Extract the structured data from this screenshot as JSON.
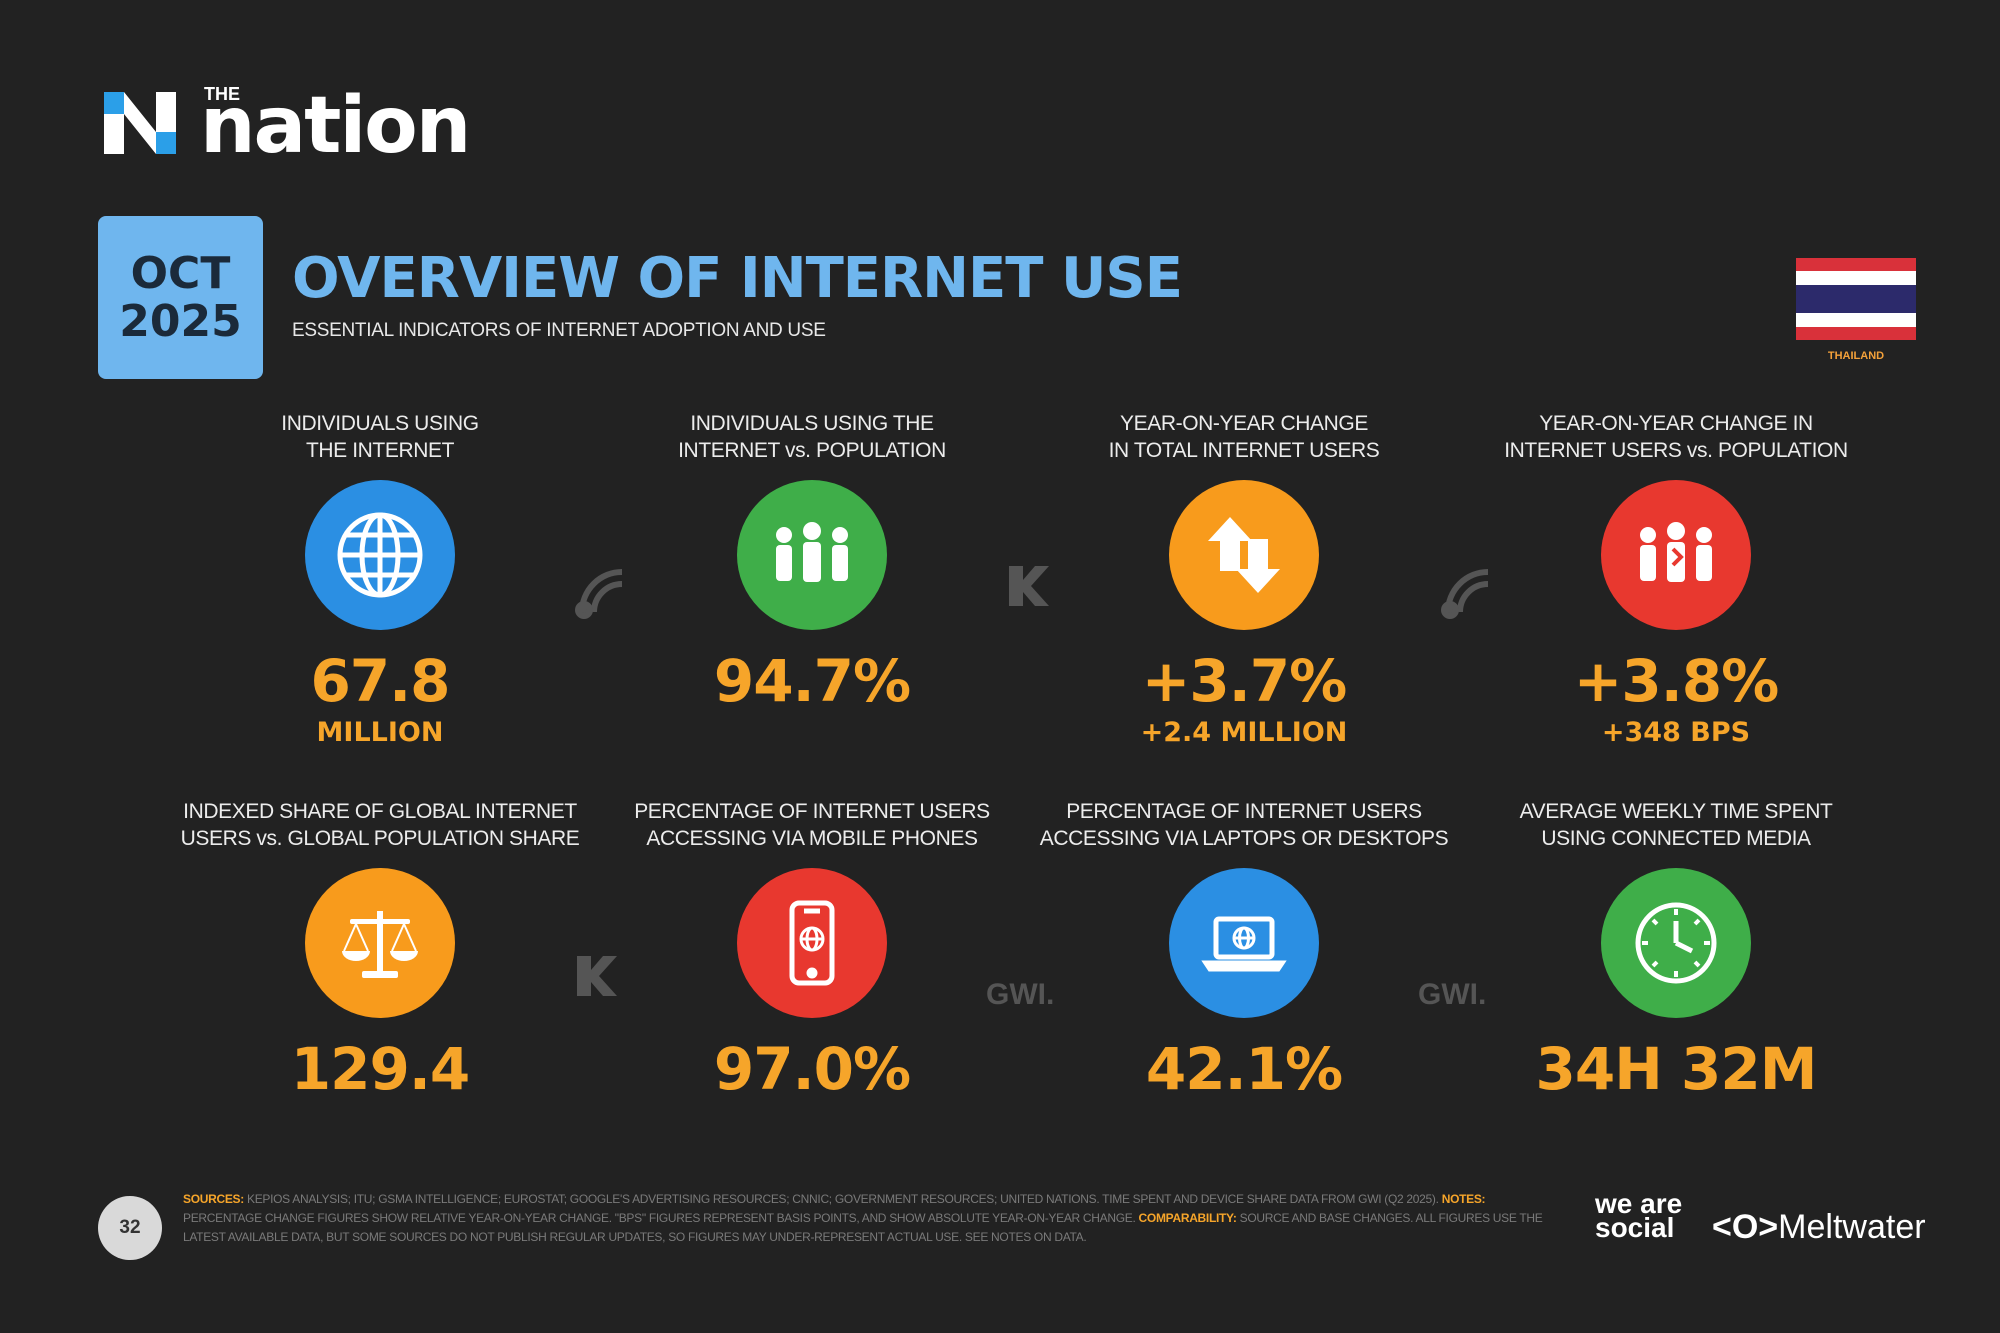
{
  "logo": {
    "small": "THE",
    "word": "nation"
  },
  "date": {
    "month": "OCT",
    "year": "2025"
  },
  "title": "OVERVIEW OF INTERNET USE",
  "subtitle": "ESSENTIAL INDICATORS OF INTERNET ADOPTION AND USE",
  "country": "THAILAND",
  "colors": {
    "blue": "#2b8fe3",
    "green": "#3fae49",
    "orange": "#f89b1c",
    "red": "#e8382f",
    "accent": "#f6a52a",
    "title": "#6fb6ee"
  },
  "stats": [
    {
      "label1": "INDIVIDUALS USING",
      "label2": "THE INTERNET",
      "value": "67.8",
      "sub": "MILLION",
      "icon": "globe-icon"
    },
    {
      "label1": "INDIVIDUALS USING THE",
      "label2": "INTERNET vs. POPULATION",
      "value": "94.7%",
      "sub": "",
      "icon": "people-icon"
    },
    {
      "label1": "YEAR-ON-YEAR CHANGE",
      "label2": "IN TOTAL INTERNET USERS",
      "value": "+3.7%",
      "sub": "+2.4 MILLION",
      "icon": "up-down-arrows-icon"
    },
    {
      "label1": "YEAR-ON-YEAR CHANGE IN",
      "label2": "INTERNET USERS vs. POPULATION",
      "value": "+3.8%",
      "sub": "+348 BPS",
      "icon": "people-flag-icon"
    },
    {
      "label1": "INDEXED SHARE OF GLOBAL INTERNET",
      "label2": "USERS vs. GLOBAL POPULATION SHARE",
      "value": "129.4",
      "sub": "",
      "icon": "scales-icon"
    },
    {
      "label1": "PERCENTAGE OF INTERNET USERS",
      "label2": "ACCESSING VIA MOBILE PHONES",
      "value": "97.0%",
      "sub": "",
      "icon": "mobile-phone-icon"
    },
    {
      "label1": "PERCENTAGE OF INTERNET USERS",
      "label2": "ACCESSING VIA LAPTOPS OR DESKTOPS",
      "value": "42.1%",
      "sub": "",
      "icon": "laptop-icon"
    },
    {
      "label1": "AVERAGE WEEKLY TIME SPENT",
      "label2": "USING CONNECTED MEDIA",
      "value": "34H 32M",
      "sub": "",
      "icon": "clock-icon"
    }
  ],
  "watermarks": {
    "gwi": "GWI.",
    "kepios": "KEPIOS"
  },
  "footer": {
    "page": "32",
    "sources_label": "SOURCES:",
    "sources_text": "KEPIOS ANALYSIS; ITU; GSMA INTELLIGENCE; EUROSTAT; GOOGLE'S ADVERTISING RESOURCES; CNNIC; GOVERNMENT RESOURCES; UNITED NATIONS. TIME SPENT AND DEVICE SHARE DATA FROM GWI (Q2 2025).",
    "notes_label": "NOTES:",
    "notes_text": "PERCENTAGE CHANGE FIGURES SHOW RELATIVE YEAR-ON-YEAR CHANGE. \"BPS\" FIGURES REPRESENT BASIS POINTS, AND SHOW ABSOLUTE YEAR-ON-YEAR CHANGE.",
    "comparability_label": "COMPARABILITY:",
    "comparability_text": "SOURCE AND BASE CHANGES. ALL FIGURES USE THE LATEST AVAILABLE DATA, BUT SOME SOURCES DO NOT PUBLISH REGULAR UPDATES, SO FIGURES MAY UNDER-REPRESENT ACTUAL USE. SEE NOTES ON DATA.",
    "weare": "we are social",
    "meltwater": "Meltwater"
  }
}
